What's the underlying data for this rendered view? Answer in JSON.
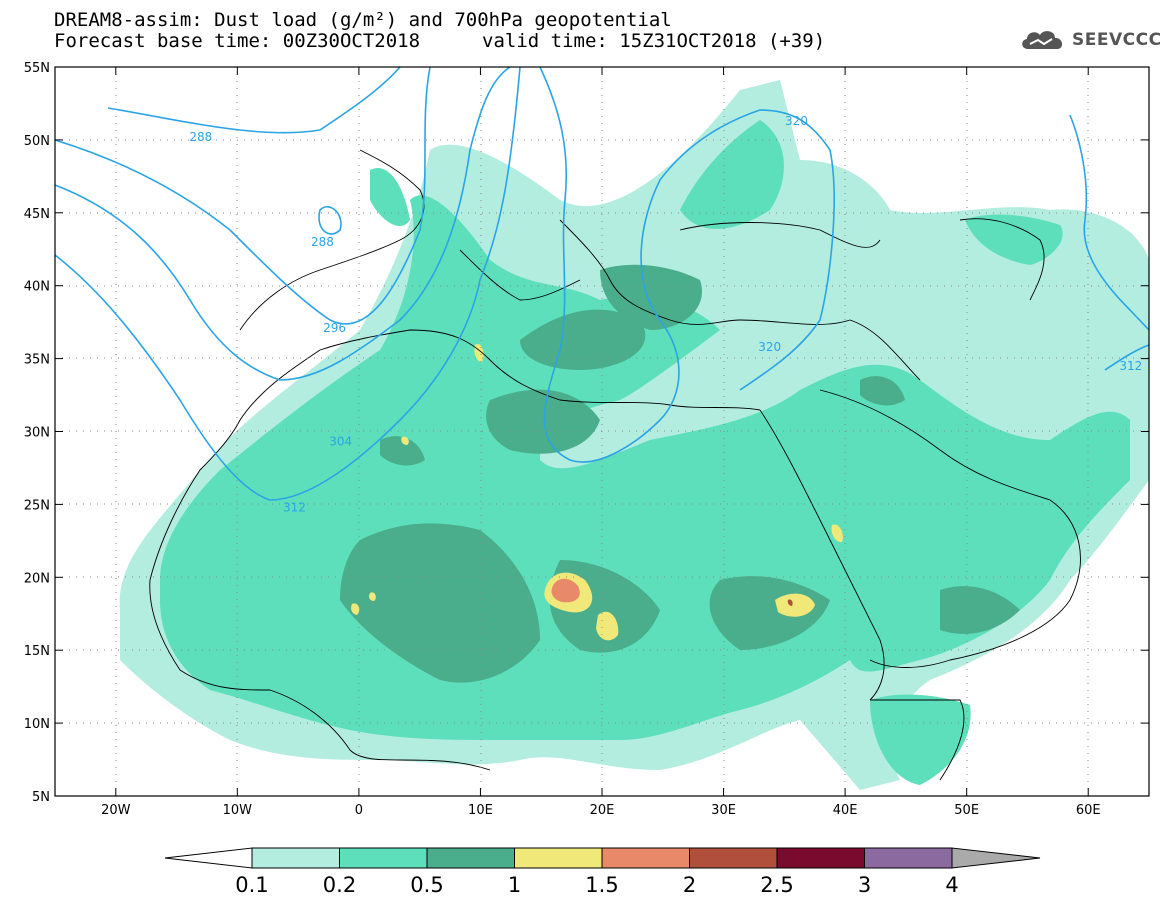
{
  "header": {
    "title_line1": "DREAM8-assim: Dust load (g/m²) and 700hPa geopotential",
    "title_line2": "Forecast base time: 00Z30OCT2018",
    "valid_time": "valid time: 15Z31OCT2018 (+39)"
  },
  "logo": {
    "icon": "cloud-icon",
    "text": "SEEVCCC"
  },
  "map": {
    "lon_range": [
      -25,
      65
    ],
    "lat_range": [
      5,
      55
    ],
    "lon_ticks": [
      {
        "value": -20,
        "label": "20W"
      },
      {
        "value": -10,
        "label": "10W"
      },
      {
        "value": 0,
        "label": "0"
      },
      {
        "value": 10,
        "label": "10E"
      },
      {
        "value": 20,
        "label": "20E"
      },
      {
        "value": 30,
        "label": "30E"
      },
      {
        "value": 40,
        "label": "40E"
      },
      {
        "value": 50,
        "label": "50E"
      },
      {
        "value": 60,
        "label": "60E"
      }
    ],
    "lat_ticks": [
      {
        "value": 55,
        "label": "55N"
      },
      {
        "value": 50,
        "label": "50N"
      },
      {
        "value": 45,
        "label": "45N"
      },
      {
        "value": 40,
        "label": "40N"
      },
      {
        "value": 35,
        "label": "35N"
      },
      {
        "value": 30,
        "label": "30N"
      },
      {
        "value": 25,
        "label": "25N"
      },
      {
        "value": 20,
        "label": "20N"
      },
      {
        "value": 15,
        "label": "15N"
      },
      {
        "value": 10,
        "label": "10N"
      },
      {
        "value": 5,
        "label": "5N"
      }
    ],
    "contour_labels": [
      {
        "text": "288",
        "lon": -13,
        "lat": 50.2
      },
      {
        "text": "288",
        "lon": -3,
        "lat": 43
      },
      {
        "text": "296",
        "lon": -2,
        "lat": 37.1
      },
      {
        "text": "304",
        "lon": -1.5,
        "lat": 29.3
      },
      {
        "text": "312",
        "lon": -5.3,
        "lat": 24.8
      },
      {
        "text": "320",
        "lon": 36,
        "lat": 51.3
      },
      {
        "text": "320",
        "lon": 33.8,
        "lat": 35.8
      },
      {
        "text": "312",
        "lon": 63.5,
        "lat": 34.5
      }
    ],
    "colors": {
      "c1": "#b2ede0",
      "c2": "#5ddfbb",
      "c3": "#4aae8c",
      "c4": "#f1e87a",
      "c5": "#e88a6a",
      "c6": "#b0503c",
      "c7": "#7a0b2e",
      "c8": "#8b6aa0",
      "contour": "#2ba4e6"
    }
  },
  "colorbar": {
    "colors": [
      "#ffffff",
      "#b2ede0",
      "#5ddfbb",
      "#4aae8c",
      "#f1e87a",
      "#e88a6a",
      "#b0503c",
      "#7a0b2e",
      "#8b6aa0",
      "#aaaaaa"
    ],
    "labels": [
      "0.1",
      "0.2",
      "0.5",
      "1",
      "1.5",
      "2",
      "2.5",
      "3",
      "4"
    ]
  }
}
